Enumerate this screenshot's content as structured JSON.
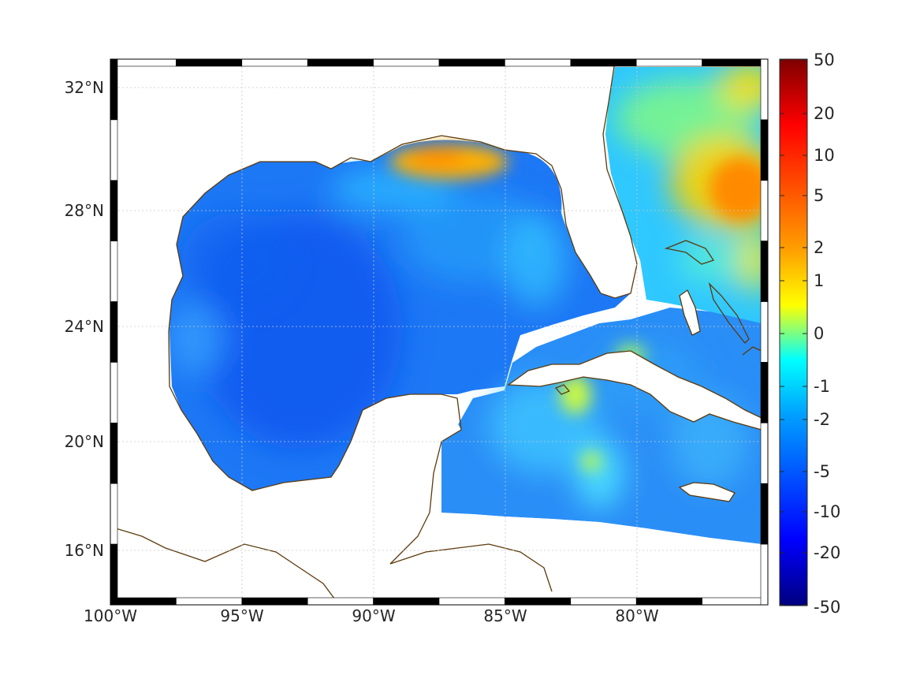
{
  "map": {
    "lon_ticks": [
      "100°W",
      "95°W",
      "90°W",
      "85°W",
      "80°W"
    ],
    "lat_ticks": [
      "32°N",
      "28°N",
      "24°N",
      "20°N",
      "16°N"
    ],
    "lon_range_deg": [
      -100,
      -75
    ],
    "lat_range_deg": [
      14.5,
      33
    ],
    "gridlines": true,
    "frame_style": "alternating black-white border",
    "coastline_color": "#5c3a0c",
    "land_color": "#ffffff"
  },
  "colorbar": {
    "placement": "right",
    "tick_labels": [
      "50",
      "20",
      "10",
      "5",
      "2",
      "1",
      "0",
      "-1",
      "-2",
      "-5",
      "-10",
      "-20",
      "-50"
    ],
    "colormap": "jet",
    "scale": "symmetric nonlinear"
  },
  "features": [
    {
      "region": "Northern Gulf coast (Mississippi/Alabama shelf)",
      "level": "5"
    },
    {
      "region": "Atlantic off Georgia/Carolinas",
      "level": "5 to 10"
    },
    {
      "region": "Central Gulf of Mexico",
      "level": "-5 to -10"
    },
    {
      "region": "South of Cuba",
      "level": "-1 to 1"
    }
  ]
}
